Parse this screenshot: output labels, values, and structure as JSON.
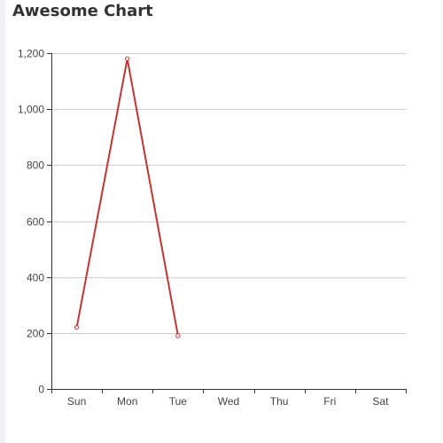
{
  "chart_data": {
    "type": "line",
    "title": "Awesome Chart",
    "categories": [
      "Sun",
      "Mon",
      "Tue",
      "Wed",
      "Thu",
      "Fri",
      "Sat"
    ],
    "series": [
      {
        "values": [
          220,
          1180,
          190,
          null,
          null,
          null,
          null
        ],
        "color": "#c23531"
      }
    ],
    "ylim": [
      0,
      1200
    ],
    "yticks": [
      0,
      200,
      400,
      600,
      800,
      1000,
      1200
    ],
    "ytick_labels": [
      "0",
      "200",
      "400",
      "600",
      "800",
      "1,000",
      "1,200"
    ],
    "grid": true,
    "legend": "none"
  }
}
